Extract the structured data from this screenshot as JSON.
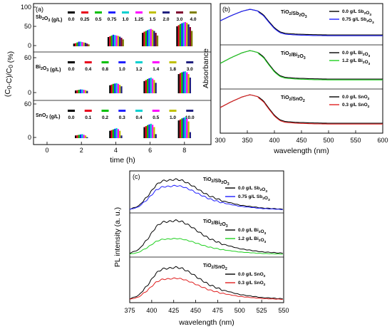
{
  "chart_data": [
    {
      "id": "a",
      "type": "bar",
      "panel_label": "(a)",
      "xlabel": "time (h)",
      "ylabel": "(C0-C)/C0 (%)",
      "x_ticks": [
        "0",
        "2",
        "4",
        "6",
        "8"
      ],
      "y_ticks": [
        "0",
        "50",
        "100"
      ],
      "ylim": [
        0,
        100
      ],
      "colors": [
        "#000000",
        "#e8001c",
        "#00c000",
        "#2020ff",
        "#00d0d0",
        "#ff00ff",
        "#c0c000",
        "#202080",
        "#800030",
        "#808000",
        "#6a0040"
      ],
      "subpanels": [
        {
          "compound": "Sb2O3",
          "legend_title": "Sb2O3 (g/L)",
          "concentrations": [
            "0.0",
            "0.25",
            "0.5",
            "0.75",
            "1.0",
            "1.25",
            "1.5",
            "2.0",
            "3.0",
            "4.0"
          ],
          "x": [
            2,
            4,
            6,
            8
          ],
          "values": [
            [
              7,
              24,
              35,
              52
            ],
            [
              8,
              26,
              38,
              55
            ],
            [
              10,
              28,
              40,
              58
            ],
            [
              12,
              30,
              42,
              60
            ],
            [
              12,
              29,
              44,
              62
            ],
            [
              11,
              28,
              45,
              63
            ],
            [
              10,
              27,
              43,
              61
            ],
            [
              9,
              25,
              40,
              57
            ],
            [
              7,
              22,
              35,
              50
            ],
            [
              5,
              18,
              28,
              40
            ]
          ]
        },
        {
          "compound": "Bi2O3",
          "legend_title": "Bi2O3 (g/L)",
          "concentrations": [
            "0.0",
            "0.4",
            "0.8",
            "1.0",
            "1.2",
            "1.4",
            "1.8",
            "3.0"
          ],
          "x": [
            2,
            4,
            6,
            8
          ],
          "values": [
            [
              8,
              23,
              35,
              55
            ],
            [
              9,
              25,
              38,
              58
            ],
            [
              10,
              27,
              41,
              60
            ],
            [
              11,
              28,
              43,
              62
            ],
            [
              11,
              29,
              45,
              63
            ],
            [
              10,
              27,
              42,
              60
            ],
            [
              9,
              24,
              38,
              55
            ],
            [
              7,
              20,
              30,
              45
            ]
          ]
        },
        {
          "compound": "SnO2",
          "legend_title": "SnO2 (g/L)",
          "concentrations": [
            "0.0",
            "0.1",
            "0.2",
            "0.3",
            "0.4",
            "0.5",
            "1.0",
            "10.0"
          ],
          "x": [
            2,
            4,
            6,
            8
          ],
          "values": [
            [
              8,
              22,
              33,
              53
            ],
            [
              9,
              24,
              36,
              56
            ],
            [
              10,
              26,
              39,
              59
            ],
            [
              11,
              28,
              41,
              61
            ],
            [
              12,
              30,
              43,
              63
            ],
            [
              10,
              27,
              40,
              58
            ],
            [
              8,
              22,
              33,
              50
            ],
            [
              3,
              8,
              12,
              18
            ]
          ]
        }
      ]
    },
    {
      "id": "b",
      "type": "line",
      "panel_label": "(b)",
      "xlabel": "wavelength (nm)",
      "ylabel": "Absorbance",
      "x_ticks": [
        "300",
        "350",
        "400",
        "450",
        "500",
        "550",
        "600"
      ],
      "xlim": [
        300,
        600
      ],
      "subpanels": [
        {
          "title": "TiO2/Sb2O3",
          "series": [
            {
              "name": "0.0 g/L Sb2O3",
              "color": "#000000"
            },
            {
              "name": "0.75 g/L Sb2O3",
              "color": "#2020ff"
            }
          ]
        },
        {
          "title": "TiO2/Bi2O3",
          "series": [
            {
              "name": "0.0 g/L Bi2O3",
              "color": "#000000"
            },
            {
              "name": "1.2 g/L Bi2O3",
              "color": "#20d020"
            }
          ]
        },
        {
          "title": "TiO2/SnO2",
          "series": [
            {
              "name": "0.0 g/L SnO2",
              "color": "#000000"
            },
            {
              "name": "0.3 g/L SnO2",
              "color": "#e02020"
            }
          ]
        }
      ],
      "x": [
        300,
        320,
        340,
        355,
        370,
        380,
        390,
        400,
        410,
        420,
        440,
        470,
        500,
        550,
        600
      ],
      "shape": [
        0.55,
        0.75,
        0.92,
        1.0,
        0.93,
        0.78,
        0.52,
        0.28,
        0.12,
        0.06,
        0.03,
        0.01,
        0.0,
        0.0,
        0.0
      ]
    },
    {
      "id": "c",
      "type": "line",
      "panel_label": "(c)",
      "xlabel": "wavelength (nm)",
      "ylabel": "PL intensity (a. u.)",
      "x_ticks": [
        "375",
        "400",
        "425",
        "450",
        "475",
        "500",
        "525",
        "550"
      ],
      "xlim": [
        375,
        550
      ],
      "subpanels": [
        {
          "title": "TiO2/Sb2O3",
          "series": [
            {
              "name": "0.0 g/L Sb2O3",
              "color": "#000000",
              "peak": 0.85
            },
            {
              "name": "0.75 g/L Sb2O3",
              "color": "#2020ff",
              "peak": 0.68
            }
          ]
        },
        {
          "title": "TiO2/Bi2O3",
          "series": [
            {
              "name": "0.0 g/L Bi2O3",
              "color": "#000000",
              "peak": 0.88
            },
            {
              "name": "1.2 g/L Bi2O3",
              "color": "#20d020",
              "peak": 0.42
            }
          ]
        },
        {
          "title": "TiO2/SnO2",
          "series": [
            {
              "name": "0.0 g/L SnO2",
              "color": "#000000",
              "peak": 0.82
            },
            {
              "name": "0.3 g/L SnO2",
              "color": "#e02020",
              "peak": 0.55
            }
          ]
        }
      ],
      "x": [
        375,
        385,
        395,
        405,
        412,
        420,
        428,
        435,
        445,
        455,
        465,
        480,
        500,
        525,
        550
      ],
      "shape": [
        0.05,
        0.15,
        0.45,
        0.82,
        0.95,
        0.97,
        1.0,
        0.96,
        0.82,
        0.64,
        0.48,
        0.32,
        0.18,
        0.09,
        0.05
      ]
    }
  ]
}
